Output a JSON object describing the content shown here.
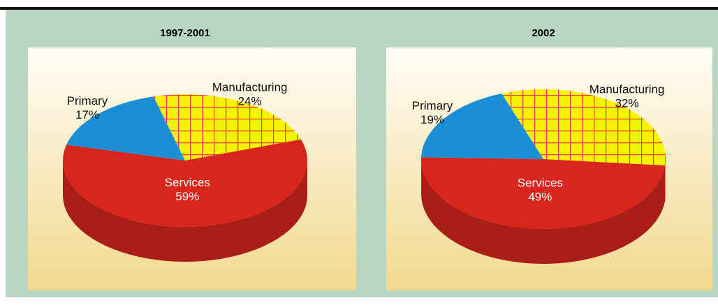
{
  "chart_data": [
    {
      "type": "pie",
      "title": "1997-2001",
      "categories": [
        "Manufacturing",
        "Services",
        "Primary"
      ],
      "values": [
        24,
        59,
        17
      ],
      "value_labels": [
        "24%",
        "59%",
        "17%"
      ],
      "colors": [
        "#f7f200",
        "#d9261c",
        "#1a8fd6"
      ]
    },
    {
      "type": "pie",
      "title": "2002",
      "categories": [
        "Manufacturing",
        "Services",
        "Primary"
      ],
      "values": [
        32,
        49,
        19
      ],
      "value_labels": [
        "32%",
        "49%",
        "19%"
      ],
      "colors": [
        "#f7f200",
        "#d9261c",
        "#1a8fd6"
      ]
    }
  ]
}
